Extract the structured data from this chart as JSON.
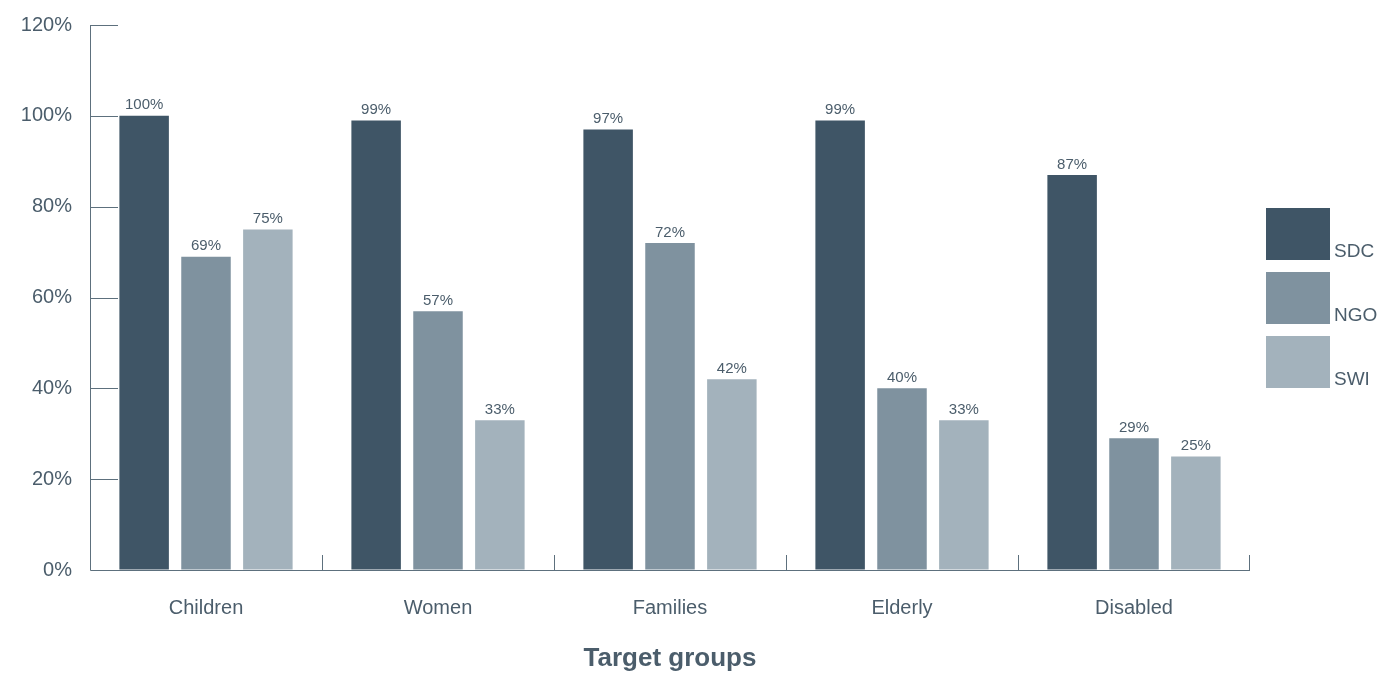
{
  "chart_data": {
    "type": "bar",
    "xlabel": "Target groups",
    "categories": [
      "Children",
      "Women",
      "Families",
      "Elderly",
      "Disabled"
    ],
    "series": [
      {
        "name": "SDC",
        "color": "#3f5566",
        "values": [
          100,
          99,
          97,
          99,
          87
        ],
        "value_labels": [
          "100%",
          "99%",
          "97%",
          "99%",
          "87%"
        ]
      },
      {
        "name": "NGO",
        "color": "#7f929f",
        "values": [
          69,
          57,
          72,
          40,
          29
        ],
        "value_labels": [
          "69%",
          "57%",
          "72%",
          "40%",
          "29%"
        ]
      },
      {
        "name": "SWI",
        "color": "#a3b2bc",
        "values": [
          75,
          33,
          42,
          33,
          25
        ],
        "value_labels": [
          "75%",
          "33%",
          "42%",
          "33%",
          "25%"
        ]
      }
    ],
    "ylim": [
      0,
      120
    ],
    "yticks": [
      {
        "value": 0,
        "label": "0%"
      },
      {
        "value": 20,
        "label": "20%"
      },
      {
        "value": 40,
        "label": "40%"
      },
      {
        "value": 60,
        "label": "60%"
      },
      {
        "value": 80,
        "label": "80%"
      },
      {
        "value": 100,
        "label": "100%"
      },
      {
        "value": 120,
        "label": "120%"
      }
    ],
    "grid": false,
    "legend": "right"
  }
}
